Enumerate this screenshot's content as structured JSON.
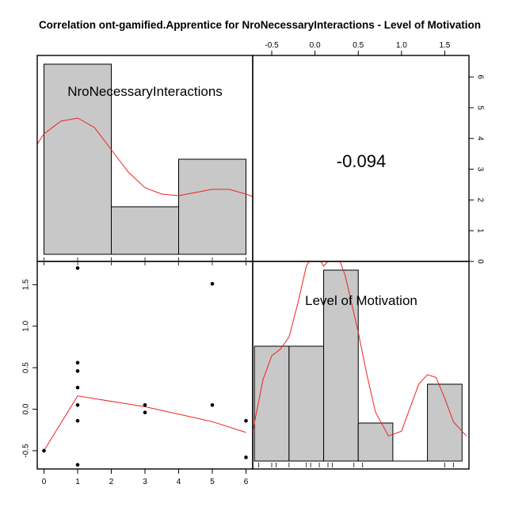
{
  "chart_data": {
    "type": "pairs",
    "title": "Correlation ont-gamified.Apprentice for NroNecessaryInteractions - Level of Motivation",
    "variables": [
      "NroNecessaryInteractions",
      "Level of Motivation"
    ],
    "correlation": "-0.094",
    "colors": {
      "bar_fill": "#c8c8c8",
      "density": "#ee2222",
      "points": "#000000",
      "frame": "#000000"
    },
    "axes": {
      "var1": {
        "range": [
          -0.2,
          6.2
        ],
        "ticks": [
          0,
          1,
          2,
          3,
          4,
          5,
          6
        ]
      },
      "var2": {
        "range": [
          -0.72,
          1.78
        ],
        "ticks": [
          -0.5,
          0.0,
          0.5,
          1.0,
          1.5
        ],
        "tick_labels": [
          "-0.5",
          "0.0",
          "0.5",
          "1.0",
          "1.5"
        ]
      },
      "count": {
        "range": [
          0,
          6.7
        ],
        "ticks": [
          0,
          1,
          2,
          3,
          4,
          5,
          6
        ]
      }
    },
    "hist_var1": {
      "bins": [
        [
          0,
          2
        ],
        [
          2,
          4
        ],
        [
          4,
          6
        ]
      ],
      "counts": [
        6,
        1.5,
        3
      ],
      "density_curve": [
        [
          -1.1,
          2.0
        ],
        [
          -0.5,
          3.0
        ],
        [
          0,
          3.8
        ],
        [
          0.5,
          4.2
        ],
        [
          1.0,
          4.3
        ],
        [
          1.5,
          4.0
        ],
        [
          2.0,
          3.3
        ],
        [
          2.5,
          2.6
        ],
        [
          3.0,
          2.1
        ],
        [
          3.5,
          1.9
        ],
        [
          4.0,
          1.85
        ],
        [
          4.5,
          1.95
        ],
        [
          5.0,
          2.05
        ],
        [
          5.5,
          2.05
        ],
        [
          6.0,
          1.9
        ],
        [
          6.5,
          1.7
        ],
        [
          7.1,
          1.55
        ]
      ]
    },
    "hist_var2": {
      "bins": [
        [
          -0.7,
          -0.3
        ],
        [
          -0.3,
          0.1
        ],
        [
          0.1,
          0.5
        ],
        [
          0.5,
          0.9
        ],
        [
          0.9,
          1.3
        ],
        [
          1.3,
          1.7
        ]
      ],
      "heights": [
        0.45,
        0.45,
        1.25,
        0.0,
        -0.38,
        0.05
      ],
      "y_range": [
        -0.85,
        1.35
      ],
      "density_curve": [
        [
          -0.72,
          -0.45
        ],
        [
          -0.6,
          0.1
        ],
        [
          -0.5,
          0.35
        ],
        [
          -0.4,
          0.42
        ],
        [
          -0.3,
          0.55
        ],
        [
          -0.2,
          0.9
        ],
        [
          -0.1,
          1.3
        ],
        [
          0.0,
          1.45
        ],
        [
          0.05,
          1.38
        ],
        [
          0.1,
          1.3
        ],
        [
          0.15,
          1.35
        ],
        [
          0.25,
          1.45
        ],
        [
          0.35,
          1.2
        ],
        [
          0.5,
          0.6
        ],
        [
          0.6,
          0.15
        ],
        [
          0.7,
          -0.25
        ],
        [
          0.85,
          -0.5
        ],
        [
          1.0,
          -0.45
        ],
        [
          1.1,
          -0.2
        ],
        [
          1.2,
          0.05
        ],
        [
          1.3,
          0.15
        ],
        [
          1.4,
          0.12
        ],
        [
          1.5,
          -0.1
        ],
        [
          1.6,
          -0.35
        ],
        [
          1.75,
          -0.5
        ]
      ],
      "rug": [
        -0.65,
        -0.5,
        -0.45,
        -0.3,
        -0.1,
        -0.05,
        0.05,
        0.15,
        0.2,
        0.45,
        0.55,
        1.5,
        1.6
      ]
    },
    "scatter": {
      "x": [
        0,
        1,
        1,
        1,
        1,
        1,
        1,
        1,
        3,
        3,
        5,
        5,
        6,
        6
      ],
      "y": [
        -0.5,
        1.7,
        0.56,
        0.46,
        0.26,
        0.05,
        -0.14,
        -0.67,
        0.05,
        -0.04,
        1.51,
        0.05,
        -0.14,
        -0.58
      ]
    },
    "smoother": {
      "x": [
        0,
        1,
        3,
        5,
        6
      ],
      "y": [
        -0.5,
        0.16,
        0.03,
        -0.15,
        -0.28
      ]
    }
  }
}
